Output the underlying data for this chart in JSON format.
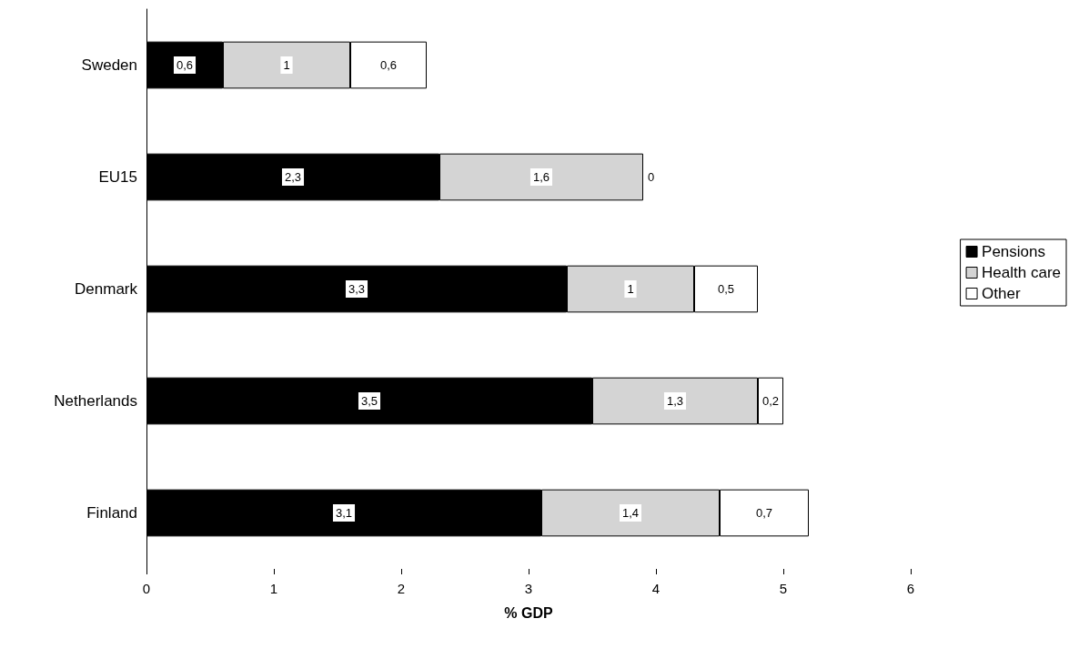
{
  "chart_data": {
    "type": "bar",
    "orientation": "horizontal",
    "stacked": true,
    "xlabel": "% GDP",
    "categories": [
      "Sweden",
      "EU15",
      "Denmark",
      "Netherlands",
      "Finland"
    ],
    "series": [
      {
        "name": "Pensions",
        "color": "#000000",
        "values": [
          0.6,
          2.3,
          3.3,
          3.5,
          3.1
        ],
        "value_labels": [
          "0,6",
          "2,3",
          "3,3",
          "3,5",
          "3,1"
        ]
      },
      {
        "name": "Health care",
        "color": "#d4d4d4",
        "values": [
          1,
          1.6,
          1,
          1.3,
          1.4
        ],
        "value_labels": [
          "1",
          "1,6",
          "1",
          "1,3",
          "1,4"
        ]
      },
      {
        "name": "Other",
        "color": "#ffffff",
        "values": [
          0.6,
          0,
          0.5,
          0.2,
          0.7
        ],
        "value_labels": [
          "0,6",
          "0",
          "0,5",
          "0,2",
          "0,7"
        ]
      }
    ],
    "xlim": [
      0,
      6
    ],
    "xticks": [
      0,
      1,
      2,
      3,
      4,
      5,
      6
    ],
    "grid": false,
    "legend": "right"
  }
}
